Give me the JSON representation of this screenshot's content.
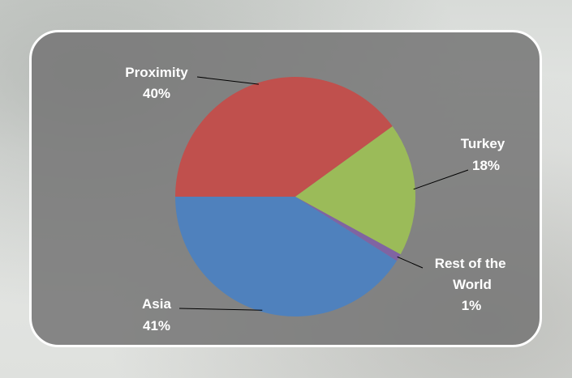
{
  "chart_data": {
    "type": "pie",
    "title": "",
    "slices": [
      {
        "label": "Proximity",
        "value": 40,
        "display": "40%",
        "color": "#c0504d"
      },
      {
        "label": "Turkey",
        "value": 18,
        "display": "18%",
        "color": "#9bbb59"
      },
      {
        "label": "Rest of the World",
        "value": 1,
        "display": "1%",
        "color": "#8064a2"
      },
      {
        "label": "Asia",
        "value": 41,
        "display": "41%",
        "color": "#4f81bd"
      }
    ],
    "legend": "none"
  }
}
